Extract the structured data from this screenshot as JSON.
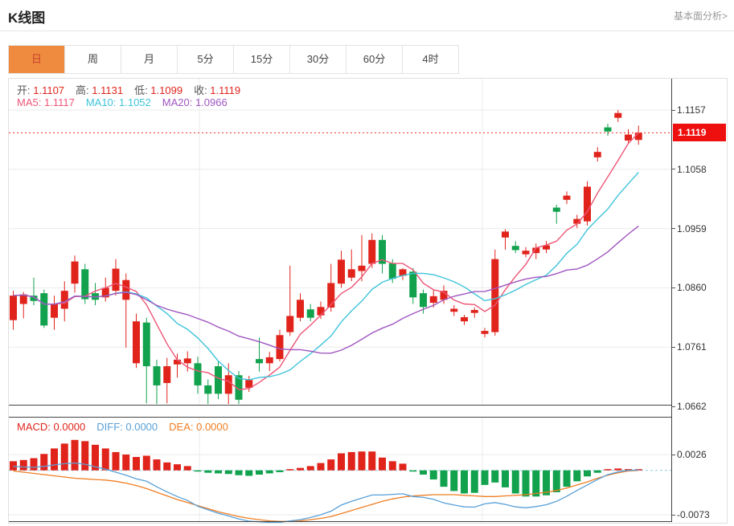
{
  "header": {
    "title": "K线图",
    "link": "基本面分析>"
  },
  "tabs": {
    "items": [
      "日",
      "周",
      "月",
      "5分",
      "15分",
      "30分",
      "60分",
      "4时"
    ],
    "active_index": 0
  },
  "legend": {
    "ohlc": [
      {
        "label": "开:",
        "value": "1.1107"
      },
      {
        "label": "高:",
        "value": "1.1131"
      },
      {
        "label": "低:",
        "value": "1.1099"
      },
      {
        "label": "收:",
        "value": "1.1119"
      }
    ],
    "ma": [
      {
        "label": "MA5:",
        "value": "1.1117",
        "color": "#ee5577"
      },
      {
        "label": "MA10:",
        "value": "1.1052",
        "color": "#3fc4da"
      },
      {
        "label": "MA20:",
        "value": "1.0966",
        "color": "#a055c0"
      }
    ],
    "macd": [
      {
        "label": "MACD:",
        "value": "0.0000",
        "color": "#e0241b"
      },
      {
        "label": "DIFF:",
        "value": "0.0000",
        "color": "#58a0d8"
      },
      {
        "label": "DEA:",
        "value": "0.0000",
        "color": "#ef7d22"
      }
    ]
  },
  "colors": {
    "up": "#e0241b",
    "down": "#12a24e",
    "ma5": "#ee5577",
    "ma10": "#3fc4da",
    "ma20": "#a055c0",
    "diff": "#58a0d8",
    "dea": "#ef7d22",
    "accent": "#ef8b3f",
    "accent_text": "#c9402e",
    "price_tag_bg": "#ee0f0f",
    "current_price_line": "#f22c2c",
    "macd_zero_line": "#8ecbe0",
    "grid": "#ebebeb",
    "border_dark": "#444444",
    "axis_text": "#333333"
  },
  "chart_data": {
    "type": "candlestick",
    "title": "K线图",
    "timeframe": "日",
    "y_axis": {
      "ticks": [
        1.1157,
        1.1058,
        1.0959,
        1.086,
        1.0761,
        1.0662
      ]
    },
    "current_price": 1.1119,
    "last_candle": {
      "open": 1.1107,
      "high": 1.1131,
      "low": 1.1099,
      "close": 1.1119
    },
    "ma_periods": [
      5,
      10,
      20
    ],
    "ma_last": {
      "MA5": 1.1117,
      "MA10": 1.1052,
      "MA20": 1.0966
    },
    "candles": [
      [
        1.0806,
        1.0855,
        1.079,
        1.0847
      ],
      [
        1.0833,
        1.0853,
        1.0809,
        1.0849
      ],
      [
        1.0847,
        1.0877,
        1.0831,
        1.0838
      ],
      [
        1.0851,
        1.0857,
        1.0793,
        1.0797
      ],
      [
        1.081,
        1.0847,
        1.079,
        1.0833
      ],
      [
        1.0825,
        1.0871,
        1.0804,
        1.0855
      ],
      [
        1.0867,
        1.0914,
        1.0852,
        1.0904
      ],
      [
        1.0891,
        1.09,
        1.0833,
        1.0841
      ],
      [
        1.0851,
        1.0868,
        1.0831,
        1.084
      ],
      [
        1.0844,
        1.0877,
        1.0837,
        1.086
      ],
      [
        1.0855,
        1.0908,
        1.0847,
        1.0892
      ],
      [
        1.084,
        1.0884,
        1.076,
        1.0873
      ],
      [
        1.0734,
        1.0817,
        1.0726,
        1.0804
      ],
      [
        1.0802,
        1.081,
        1.0667,
        1.0729
      ],
      [
        1.0729,
        1.074,
        1.0666,
        1.0697
      ],
      [
        1.0701,
        1.0743,
        1.0667,
        1.0729
      ],
      [
        1.0732,
        1.075,
        1.071,
        1.074
      ],
      [
        1.0734,
        1.0754,
        1.072,
        1.0742
      ],
      [
        1.0734,
        1.0745,
        1.0683,
        1.0697
      ],
      [
        1.0697,
        1.0707,
        1.0666,
        1.0683
      ],
      [
        1.0729,
        1.0737,
        1.0674,
        1.0683
      ],
      [
        1.0683,
        1.0734,
        1.0666,
        1.0714
      ],
      [
        1.0714,
        1.0721,
        1.0666,
        1.0673
      ],
      [
        1.0693,
        1.0713,
        1.0686,
        1.0706
      ],
      [
        1.0741,
        1.0777,
        1.072,
        1.0734
      ],
      [
        1.0734,
        1.0753,
        1.0721,
        1.0744
      ],
      [
        1.0741,
        1.079,
        1.0737,
        1.0781
      ],
      [
        1.0786,
        1.0897,
        1.078,
        1.0813
      ],
      [
        1.081,
        1.0851,
        1.0804,
        1.084
      ],
      [
        1.0824,
        1.0833,
        1.0804,
        1.081
      ],
      [
        1.0814,
        1.0837,
        1.0808,
        1.0828
      ],
      [
        1.0827,
        1.09,
        1.082,
        1.0868
      ],
      [
        1.0867,
        1.0922,
        1.086,
        1.0907
      ],
      [
        1.0877,
        1.0924,
        1.0871,
        1.0891
      ],
      [
        1.0888,
        1.0948,
        1.0871,
        1.0897
      ],
      [
        1.09,
        1.0951,
        1.0893,
        1.094
      ],
      [
        1.094,
        1.0948,
        1.0884,
        1.09
      ],
      [
        1.0901,
        1.0908,
        1.0868,
        1.0875
      ],
      [
        1.088,
        1.0893,
        1.0873,
        1.0891
      ],
      [
        1.0887,
        1.0893,
        1.0833,
        1.0844
      ],
      [
        1.0851,
        1.0857,
        1.0817,
        1.0828
      ],
      [
        1.0835,
        1.0857,
        1.0827,
        1.0846
      ],
      [
        1.084,
        1.0864,
        1.0833,
        1.0855
      ],
      [
        1.082,
        1.0831,
        1.0813,
        1.0825
      ],
      [
        1.0804,
        1.0815,
        1.0798,
        1.0811
      ],
      [
        1.0818,
        1.0827,
        1.081,
        1.0823
      ],
      [
        1.0783,
        1.0793,
        1.0777,
        1.0788
      ],
      [
        1.0786,
        1.0924,
        1.078,
        1.0908
      ],
      [
        1.0944,
        1.0958,
        1.0924,
        1.0954
      ],
      [
        1.093,
        1.0938,
        1.0918,
        1.0923
      ],
      [
        1.0916,
        1.0928,
        1.0911,
        1.0922
      ],
      [
        1.0918,
        1.0934,
        1.0908,
        1.0927
      ],
      [
        1.0924,
        1.0938,
        1.0918,
        1.0931
      ],
      [
        1.0994,
        1.0999,
        1.0967,
        1.0987
      ],
      [
        1.1007,
        1.1021,
        1.1,
        1.1014
      ],
      [
        1.0967,
        1.0982,
        1.096,
        1.0975
      ],
      [
        1.0971,
        1.1038,
        1.0964,
        1.1029
      ],
      [
        1.1078,
        1.1095,
        1.1071,
        1.1087
      ],
      [
        1.1128,
        1.1134,
        1.1114,
        1.1121
      ],
      [
        1.1144,
        1.1157,
        1.1137,
        1.1152
      ],
      [
        1.1106,
        1.1125,
        1.1101,
        1.1116
      ],
      [
        1.1107,
        1.1131,
        1.1099,
        1.1119
      ]
    ],
    "macd": {
      "y_ticks": [
        0.0026,
        -0.0073
      ],
      "last": {
        "macd": 0.0,
        "diff": 0.0,
        "dea": 0.0
      },
      "hist": [
        0.0015,
        0.0017,
        0.002,
        0.0027,
        0.0036,
        0.0044,
        0.005,
        0.0048,
        0.0042,
        0.0036,
        0.003,
        0.0026,
        0.0022,
        0.0024,
        0.0018,
        0.0013,
        0.001,
        0.0007,
        -0.0002,
        -0.0004,
        -0.0005,
        -0.0006,
        -0.0008,
        -0.0009,
        -0.0007,
        -0.0005,
        -0.0003,
        0.0002,
        0.0004,
        0.0007,
        0.0012,
        0.0018,
        0.0028,
        0.003,
        0.0031,
        0.0031,
        0.0021,
        0.0015,
        0.0011,
        -0.0002,
        -0.0007,
        -0.0015,
        -0.0027,
        -0.0034,
        -0.0038,
        -0.0037,
        -0.0024,
        -0.002,
        -0.0028,
        -0.0038,
        -0.0043,
        -0.0043,
        -0.0041,
        -0.0036,
        -0.0027,
        -0.0018,
        -0.001,
        -0.0004,
        0.0002,
        0.0003,
        0.0002,
        0.0001
      ],
      "diff": [
        0.00065,
        0.00055,
        0.0005,
        0.00065,
        0.0009,
        0.0011,
        0.0012,
        0.001,
        0.0006,
        0.0002,
        -0.0003,
        -0.0008,
        -0.0014,
        -0.0018,
        -0.0027,
        -0.00355,
        -0.0043,
        -0.00495,
        -0.0059,
        -0.0065,
        -0.00705,
        -0.0075,
        -0.008,
        -0.00835,
        -0.00845,
        -0.00855,
        -0.00855,
        -0.0083,
        -0.0081,
        -0.00775,
        -0.0073,
        -0.0067,
        -0.0057,
        -0.0051,
        -0.00455,
        -0.00405,
        -0.00405,
        -0.00395,
        -0.00385,
        -0.0043,
        -0.00445,
        -0.00475,
        -0.00535,
        -0.0057,
        -0.006,
        -0.00605,
        -0.0055,
        -0.0053,
        -0.0056,
        -0.006,
        -0.00615,
        -0.00595,
        -0.00565,
        -0.0051,
        -0.00425,
        -0.0033,
        -0.0024,
        -0.0015,
        -0.0007,
        -0.00025,
        0.0,
        5e-05
      ],
      "dea": [
        -0.0001,
        -0.0003,
        -0.0005,
        -0.0007,
        -0.0009,
        -0.0011,
        -0.0013,
        -0.0014,
        -0.0015,
        -0.0016,
        -0.0018,
        -0.0021,
        -0.0025,
        -0.003,
        -0.0036,
        -0.0042,
        -0.0048,
        -0.0053,
        -0.0058,
        -0.0063,
        -0.0068,
        -0.0072,
        -0.0076,
        -0.0079,
        -0.0081,
        -0.0083,
        -0.0084,
        -0.0084,
        -0.0083,
        -0.0081,
        -0.0079,
        -0.0076,
        -0.0071,
        -0.0066,
        -0.0061,
        -0.0056,
        -0.0051,
        -0.0047,
        -0.0044,
        -0.0042,
        -0.0041,
        -0.004,
        -0.004,
        -0.004,
        -0.0041,
        -0.0042,
        -0.0043,
        -0.0043,
        -0.0042,
        -0.0041,
        -0.004,
        -0.0038,
        -0.0036,
        -0.0033,
        -0.0029,
        -0.0024,
        -0.0019,
        -0.0013,
        -0.0008,
        -0.0004,
        -0.0001,
        0.0
      ]
    }
  }
}
